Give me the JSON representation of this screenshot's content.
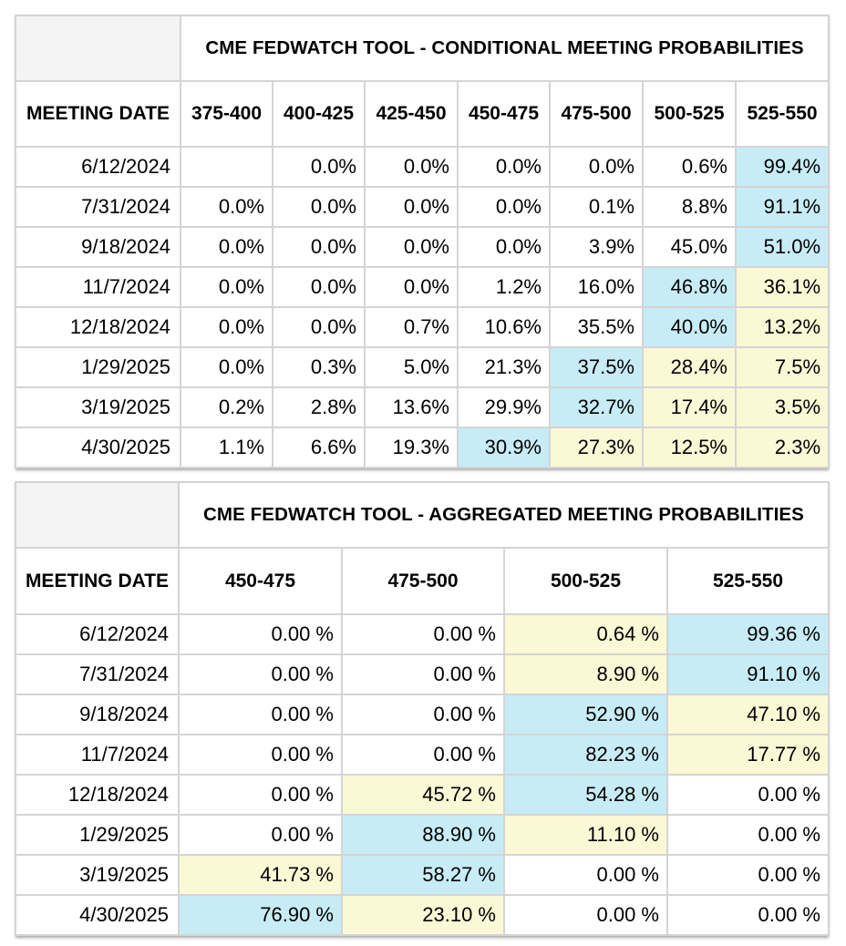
{
  "conditional": {
    "title": "CME FEDWATCH TOOL - CONDITIONAL MEETING PROBABILITIES",
    "date_header": "MEETING DATE",
    "columns": [
      "375-400",
      "400-425",
      "425-450",
      "450-475",
      "475-500",
      "500-525",
      "525-550"
    ],
    "rows": [
      {
        "date": "6/12/2024",
        "cells": [
          {
            "v": ""
          },
          {
            "v": "0.0%"
          },
          {
            "v": "0.0%"
          },
          {
            "v": "0.0%"
          },
          {
            "v": "0.0%"
          },
          {
            "v": "0.6%"
          },
          {
            "v": "99.4%",
            "hl": "blue"
          }
        ]
      },
      {
        "date": "7/31/2024",
        "cells": [
          {
            "v": "0.0%"
          },
          {
            "v": "0.0%"
          },
          {
            "v": "0.0%"
          },
          {
            "v": "0.0%"
          },
          {
            "v": "0.1%"
          },
          {
            "v": "8.8%"
          },
          {
            "v": "91.1%",
            "hl": "blue"
          }
        ]
      },
      {
        "date": "9/18/2024",
        "cells": [
          {
            "v": "0.0%"
          },
          {
            "v": "0.0%"
          },
          {
            "v": "0.0%"
          },
          {
            "v": "0.0%"
          },
          {
            "v": "3.9%"
          },
          {
            "v": "45.0%"
          },
          {
            "v": "51.0%",
            "hl": "blue"
          }
        ]
      },
      {
        "date": "11/7/2024",
        "cells": [
          {
            "v": "0.0%"
          },
          {
            "v": "0.0%"
          },
          {
            "v": "0.0%"
          },
          {
            "v": "1.2%"
          },
          {
            "v": "16.0%"
          },
          {
            "v": "46.8%",
            "hl": "blue"
          },
          {
            "v": "36.1%",
            "hl": "yellow"
          }
        ]
      },
      {
        "date": "12/18/2024",
        "cells": [
          {
            "v": "0.0%"
          },
          {
            "v": "0.0%"
          },
          {
            "v": "0.7%"
          },
          {
            "v": "10.6%"
          },
          {
            "v": "35.5%"
          },
          {
            "v": "40.0%",
            "hl": "blue"
          },
          {
            "v": "13.2%",
            "hl": "yellow"
          }
        ]
      },
      {
        "date": "1/29/2025",
        "cells": [
          {
            "v": "0.0%"
          },
          {
            "v": "0.3%"
          },
          {
            "v": "5.0%"
          },
          {
            "v": "21.3%"
          },
          {
            "v": "37.5%",
            "hl": "blue"
          },
          {
            "v": "28.4%",
            "hl": "yellow"
          },
          {
            "v": "7.5%",
            "hl": "yellow"
          }
        ]
      },
      {
        "date": "3/19/2025",
        "cells": [
          {
            "v": "0.2%"
          },
          {
            "v": "2.8%"
          },
          {
            "v": "13.6%"
          },
          {
            "v": "29.9%"
          },
          {
            "v": "32.7%",
            "hl": "blue"
          },
          {
            "v": "17.4%",
            "hl": "yellow"
          },
          {
            "v": "3.5%",
            "hl": "yellow"
          }
        ]
      },
      {
        "date": "4/30/2025",
        "cells": [
          {
            "v": "1.1%"
          },
          {
            "v": "6.6%"
          },
          {
            "v": "19.3%"
          },
          {
            "v": "30.9%",
            "hl": "blue"
          },
          {
            "v": "27.3%",
            "hl": "yellow"
          },
          {
            "v": "12.5%",
            "hl": "yellow"
          },
          {
            "v": "2.3%",
            "hl": "yellow"
          }
        ]
      }
    ]
  },
  "aggregated": {
    "title": "CME FEDWATCH TOOL - AGGREGATED MEETING PROBABILITIES",
    "date_header": "MEETING DATE",
    "columns": [
      "450-475",
      "475-500",
      "500-525",
      "525-550"
    ],
    "rows": [
      {
        "date": "6/12/2024",
        "cells": [
          {
            "v": "0.00 %"
          },
          {
            "v": "0.00 %"
          },
          {
            "v": "0.64 %",
            "hl": "yellow"
          },
          {
            "v": "99.36 %",
            "hl": "blue"
          }
        ]
      },
      {
        "date": "7/31/2024",
        "cells": [
          {
            "v": "0.00 %"
          },
          {
            "v": "0.00 %"
          },
          {
            "v": "8.90 %",
            "hl": "yellow"
          },
          {
            "v": "91.10 %",
            "hl": "blue"
          }
        ]
      },
      {
        "date": "9/18/2024",
        "cells": [
          {
            "v": "0.00 %"
          },
          {
            "v": "0.00 %"
          },
          {
            "v": "52.90 %",
            "hl": "blue"
          },
          {
            "v": "47.10 %",
            "hl": "yellow"
          }
        ]
      },
      {
        "date": "11/7/2024",
        "cells": [
          {
            "v": "0.00 %"
          },
          {
            "v": "0.00 %"
          },
          {
            "v": "82.23 %",
            "hl": "blue"
          },
          {
            "v": "17.77 %",
            "hl": "yellow"
          }
        ]
      },
      {
        "date": "12/18/2024",
        "cells": [
          {
            "v": "0.00 %"
          },
          {
            "v": "45.72 %",
            "hl": "yellow"
          },
          {
            "v": "54.28 %",
            "hl": "blue"
          },
          {
            "v": "0.00 %"
          }
        ]
      },
      {
        "date": "1/29/2025",
        "cells": [
          {
            "v": "0.00 %"
          },
          {
            "v": "88.90 %",
            "hl": "blue"
          },
          {
            "v": "11.10 %",
            "hl": "yellow"
          },
          {
            "v": "0.00 %"
          }
        ]
      },
      {
        "date": "3/19/2025",
        "cells": [
          {
            "v": "41.73 %",
            "hl": "yellow"
          },
          {
            "v": "58.27 %",
            "hl": "blue"
          },
          {
            "v": "0.00 %"
          },
          {
            "v": "0.00 %"
          }
        ]
      },
      {
        "date": "4/30/2025",
        "cells": [
          {
            "v": "76.90 %",
            "hl": "blue"
          },
          {
            "v": "23.10 %",
            "hl": "yellow"
          },
          {
            "v": "0.00 %"
          },
          {
            "v": "0.00 %"
          }
        ]
      }
    ]
  },
  "colors": {
    "highlight_blue": "#c8ecf6",
    "highlight_yellow": "#fbf8d6",
    "grid_line": "#d4d4d4",
    "corner_bg": "#f4f4f4"
  }
}
